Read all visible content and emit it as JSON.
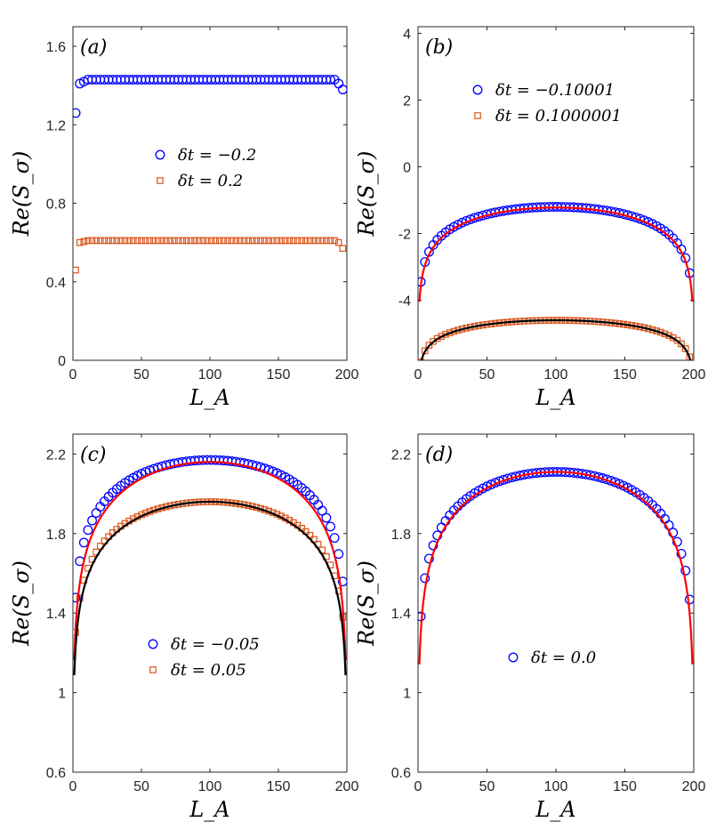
{
  "colors": {
    "blue": "#0000ff",
    "orange": "#d95319",
    "red": "#ff0000",
    "black": "#000000"
  },
  "chart_data": [
    {
      "type": "scatter",
      "panel_label": "(a)",
      "xlabel": "L_A",
      "ylabel": "Re(S_σ)",
      "xlim": [
        0,
        200
      ],
      "ylim": [
        0,
        1.7
      ],
      "xticks": [
        "0",
        "50",
        "100",
        "150",
        "200"
      ],
      "yticks": [
        "0",
        "0.4",
        "0.8",
        "1.2",
        "1.6"
      ],
      "ytick_values": [
        0,
        0.4,
        0.8,
        1.2,
        1.6
      ],
      "legend": [
        "δt = −0.2",
        "δt = 0.2"
      ],
      "series": [
        {
          "name": "δt = −0.2",
          "marker": "circle",
          "color": "blue",
          "model": "plateau",
          "params": [
            1.43,
            1.26,
            1.38,
            1.41,
            1.42
          ]
        },
        {
          "name": "δt = 0.2",
          "marker": "square",
          "color": "orange",
          "model": "plateau",
          "params": [
            0.61,
            0.46,
            0.57,
            0.6,
            0.605
          ]
        }
      ],
      "fits": []
    },
    {
      "type": "scatter",
      "panel_label": "(b)",
      "xlabel": "L_A",
      "ylabel": "Re(S_σ)",
      "xlim": [
        0,
        200
      ],
      "ylim": [
        -5.8,
        4.2
      ],
      "xticks": [
        "0",
        "50",
        "100",
        "150",
        "200"
      ],
      "yticks": [
        "4",
        "2",
        "0",
        "-2",
        "-4"
      ],
      "ytick_values": [
        4,
        2,
        0,
        -2,
        -4
      ],
      "legend": [
        "δt = −0.10001",
        "δt = 0.1000001"
      ],
      "series": [
        {
          "name": "δt = −0.10001",
          "marker": "circle",
          "color": "blue",
          "model": "log",
          "params": [
            -1.2,
            0.65
          ]
        },
        {
          "name": "δt = 0.1000001",
          "marker": "square",
          "color": "orange",
          "model": "log",
          "params": [
            -4.6,
            0.36
          ]
        }
      ],
      "fits": [
        {
          "color": "red",
          "model": "log",
          "params": [
            -1.22,
            0.68
          ]
        },
        {
          "color": "black",
          "model": "log",
          "params": [
            -4.6,
            0.37
          ]
        }
      ]
    },
    {
      "type": "scatter",
      "panel_label": "(c)",
      "xlabel": "L_A",
      "ylabel": "Re(S_σ)",
      "xlim": [
        0,
        200
      ],
      "ylim": [
        0.6,
        2.3
      ],
      "xticks": [
        "0",
        "50",
        "100",
        "150",
        "200"
      ],
      "yticks": [
        "0.6",
        "1",
        "1.4",
        "1.8",
        "2.2"
      ],
      "ytick_values": [
        0.6,
        1.0,
        1.4,
        1.8,
        2.2
      ],
      "legend": [
        "δt = −0.05",
        "δt = 0.05"
      ],
      "series": [
        {
          "name": "δt = −0.05",
          "marker": "circle",
          "color": "blue",
          "model": "log",
          "params": [
            2.17,
            0.2
          ]
        },
        {
          "name": "δt = 0.05",
          "marker": "square",
          "color": "orange",
          "model": "log",
          "params": [
            1.96,
            0.19
          ]
        }
      ],
      "fits": [
        {
          "color": "red",
          "model": "log",
          "params": [
            2.16,
            0.24
          ]
        },
        {
          "color": "black",
          "model": "log",
          "params": [
            1.96,
            0.21
          ]
        }
      ]
    },
    {
      "type": "scatter",
      "panel_label": "(d)",
      "xlabel": "L_A",
      "ylabel": "Re(S_σ)",
      "xlim": [
        0,
        200
      ],
      "ylim": [
        0.6,
        2.3
      ],
      "xticks": [
        "0",
        "50",
        "100",
        "150",
        "200"
      ],
      "yticks": [
        "0.6",
        "1",
        "1.4",
        "1.8",
        "2.2"
      ],
      "ytick_values": [
        0.6,
        1.0,
        1.4,
        1.8,
        2.2
      ],
      "legend": [
        "δt = 0.0"
      ],
      "series": [
        {
          "name": "δt = 0.0",
          "marker": "circle",
          "color": "blue",
          "model": "log",
          "params": [
            2.11,
            0.21
          ]
        }
      ],
      "fits": [
        {
          "color": "red",
          "model": "log",
          "params": [
            2.11,
            0.233
          ]
        }
      ]
    }
  ]
}
